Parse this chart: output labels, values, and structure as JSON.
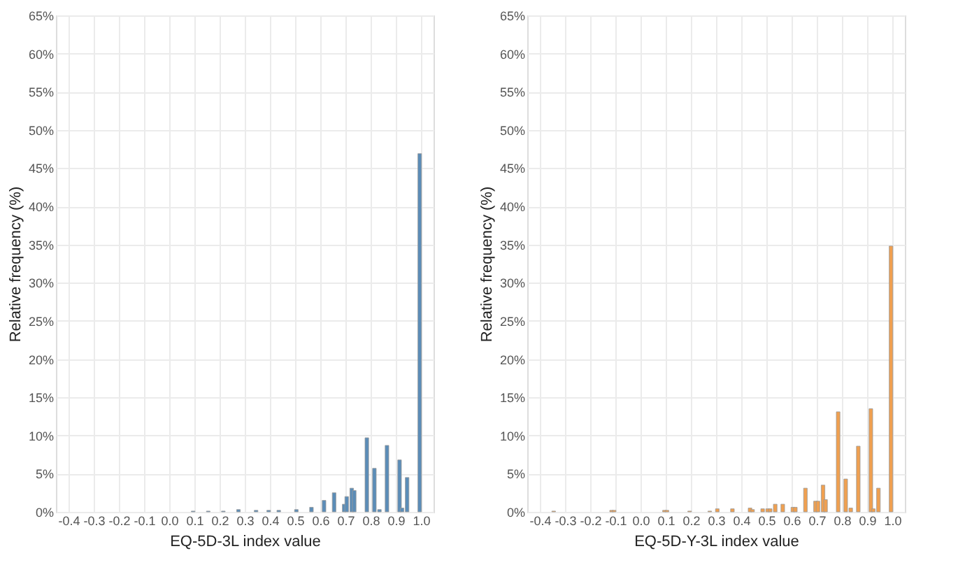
{
  "chart_data": [
    {
      "type": "bar",
      "xlabel": "EQ-5D-3L index value",
      "ylabel": "Relative frequency (%)",
      "grid": true,
      "series": [
        {
          "color": "#5b8db8",
          "x": [
            0.095,
            0.155,
            0.215,
            0.275,
            0.345,
            0.395,
            0.435,
            0.505,
            0.565,
            0.615,
            0.655,
            0.695,
            0.705,
            0.725,
            0.735,
            0.785,
            0.815,
            0.835,
            0.865,
            0.915,
            0.925,
            0.945,
            0.995
          ],
          "values": [
            0.1,
            0.1,
            0.1,
            0.3,
            0.2,
            0.2,
            0.2,
            0.3,
            0.6,
            1.5,
            2.5,
            1.0,
            2.0,
            3.1,
            2.8,
            9.7,
            5.7,
            0.3,
            8.7,
            6.8,
            0.5,
            4.5,
            46.9
          ]
        }
      ],
      "xlim": [
        -0.45,
        1.05
      ],
      "ylim": [
        0,
        65
      ],
      "xticks": [
        {
          "value": -0.4,
          "label": "-0.4"
        },
        {
          "value": -0.3,
          "label": "-0.3"
        },
        {
          "value": -0.2,
          "label": "-0.2"
        },
        {
          "value": -0.1,
          "label": "-0.1"
        },
        {
          "value": 0,
          "label": "0.0"
        },
        {
          "value": 0.1,
          "label": "0.1"
        },
        {
          "value": 0.2,
          "label": "0.2"
        },
        {
          "value": 0.3,
          "label": "0.3"
        },
        {
          "value": 0.4,
          "label": "0.4"
        },
        {
          "value": 0.5,
          "label": "0.5"
        },
        {
          "value": 0.6,
          "label": "0.6"
        },
        {
          "value": 0.7,
          "label": "0.7"
        },
        {
          "value": 0.8,
          "label": "0.8"
        },
        {
          "value": 0.9,
          "label": "0.9"
        },
        {
          "value": 1,
          "label": "1.0"
        }
      ],
      "yticks": [
        {
          "value": 0,
          "label": "0%"
        },
        {
          "value": 5,
          "label": "5%"
        },
        {
          "value": 10,
          "label": "10%"
        },
        {
          "value": 15,
          "label": "15%"
        },
        {
          "value": 20,
          "label": "20%"
        },
        {
          "value": 25,
          "label": "25%"
        },
        {
          "value": 30,
          "label": "30%"
        },
        {
          "value": 35,
          "label": "35%"
        },
        {
          "value": 40,
          "label": "40%"
        },
        {
          "value": 45,
          "label": "45%"
        },
        {
          "value": 50,
          "label": "50%"
        },
        {
          "value": 55,
          "label": "55%"
        },
        {
          "value": 60,
          "label": "60%"
        },
        {
          "value": 65,
          "label": "65%"
        }
      ]
    },
    {
      "type": "bar",
      "xlabel": "EQ-5D-Y-3L index value",
      "ylabel": "Relative frequency (%)",
      "grid": true,
      "series": [
        {
          "color": "#f0a050",
          "x": [
            -0.345,
            -0.115,
            -0.105,
            0.095,
            0.105,
            0.195,
            0.275,
            0.305,
            0.365,
            0.435,
            0.445,
            0.485,
            0.505,
            0.515,
            0.535,
            0.565,
            0.605,
            0.615,
            0.655,
            0.695,
            0.705,
            0.725,
            0.735,
            0.785,
            0.815,
            0.835,
            0.865,
            0.915,
            0.925,
            0.945,
            0.995
          ],
          "values": [
            0.1,
            0.2,
            0.2,
            0.2,
            0.2,
            0.1,
            0.1,
            0.4,
            0.4,
            0.5,
            0.3,
            0.4,
            0.4,
            0.4,
            1.0,
            1.0,
            0.6,
            0.6,
            3.1,
            1.4,
            1.4,
            3.5,
            1.6,
            13.1,
            4.3,
            0.5,
            8.6,
            13.5,
            0.4,
            3.1,
            34.8
          ]
        }
      ],
      "xlim": [
        -0.45,
        1.05
      ],
      "ylim": [
        0,
        65
      ],
      "xticks": [
        {
          "value": -0.4,
          "label": "-0.4"
        },
        {
          "value": -0.3,
          "label": "-0.3"
        },
        {
          "value": -0.2,
          "label": "-0.2"
        },
        {
          "value": -0.1,
          "label": "-0.1"
        },
        {
          "value": 0,
          "label": "0.0"
        },
        {
          "value": 0.1,
          "label": "0.1"
        },
        {
          "value": 0.2,
          "label": "0.2"
        },
        {
          "value": 0.3,
          "label": "0.3"
        },
        {
          "value": 0.4,
          "label": "0.4"
        },
        {
          "value": 0.5,
          "label": "0.5"
        },
        {
          "value": 0.6,
          "label": "0.6"
        },
        {
          "value": 0.7,
          "label": "0.7"
        },
        {
          "value": 0.8,
          "label": "0.8"
        },
        {
          "value": 0.9,
          "label": "0.9"
        },
        {
          "value": 1,
          "label": "1.0"
        }
      ],
      "yticks": [
        {
          "value": 0,
          "label": "0%"
        },
        {
          "value": 5,
          "label": "5%"
        },
        {
          "value": 10,
          "label": "10%"
        },
        {
          "value": 15,
          "label": "15%"
        },
        {
          "value": 20,
          "label": "20%"
        },
        {
          "value": 25,
          "label": "25%"
        },
        {
          "value": 30,
          "label": "30%"
        },
        {
          "value": 35,
          "label": "35%"
        },
        {
          "value": 40,
          "label": "40%"
        },
        {
          "value": 45,
          "label": "45%"
        },
        {
          "value": 50,
          "label": "50%"
        },
        {
          "value": 55,
          "label": "55%"
        },
        {
          "value": 60,
          "label": "60%"
        },
        {
          "value": 65,
          "label": "65%"
        }
      ]
    }
  ]
}
